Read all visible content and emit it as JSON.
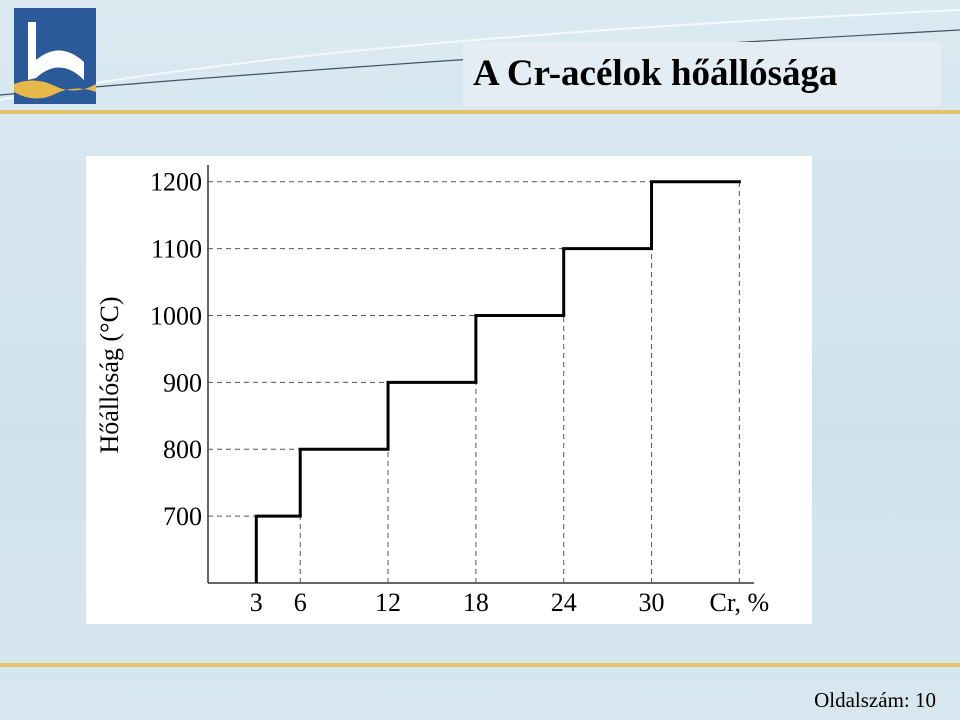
{
  "header": {
    "title": "A Cr-acélok hőállósága"
  },
  "footer": {
    "page": "Oldalszám: 10"
  },
  "chart_data": {
    "type": "step",
    "y_label": "Hőállóság (°C)",
    "x": [
      3,
      6,
      12,
      18,
      24,
      30
    ],
    "series": [
      {
        "name": "Hőállóság",
        "color": "#000000",
        "values": [
          700,
          800,
          900,
          1000,
          1100,
          1200
        ]
      }
    ],
    "xlim": [
      -0.3,
      37
    ],
    "xticks": [
      3,
      6,
      12,
      18,
      24,
      30,
      {
        "value": 36,
        "label": "Cr, %"
      }
    ],
    "ylim": [
      600,
      1225
    ],
    "yticks": [
      700,
      800,
      900,
      1000,
      1100,
      1200
    ],
    "grid": true
  }
}
